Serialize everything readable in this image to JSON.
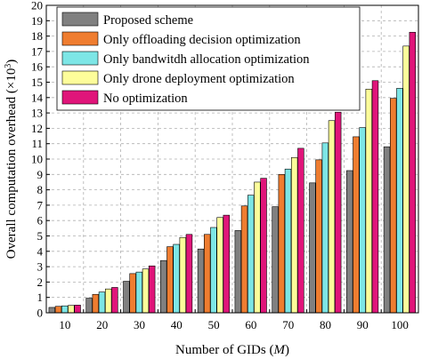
{
  "chart_data": {
    "type": "bar",
    "xlabel": "Number of GIDs (M)",
    "xlabel_prefix": "Number of GIDs (",
    "xlabel_var": "M",
    "xlabel_suffix": ")",
    "ylabel": "Overall computation overhead (×10³)",
    "ylabel_main": "Overall computation overhead (×10",
    "ylabel_sup": "3",
    "ylabel_close": ")",
    "ylim": [
      0,
      20
    ],
    "yticks": [
      0,
      1,
      2,
      3,
      4,
      5,
      6,
      7,
      8,
      9,
      10,
      11,
      12,
      13,
      14,
      15,
      16,
      17,
      18,
      19,
      20
    ],
    "categories": [
      "10",
      "20",
      "30",
      "40",
      "50",
      "60",
      "70",
      "80",
      "90",
      "100"
    ],
    "grid": true,
    "legend_position": "top-left",
    "series": [
      {
        "name": "Proposed scheme",
        "color": "#808080",
        "values": [
          0.35,
          0.95,
          2.05,
          3.4,
          4.15,
          5.35,
          6.9,
          8.45,
          9.25,
          10.8
        ]
      },
      {
        "name": "Only offloading decision optimization",
        "color": "#ef7d30",
        "values": [
          0.42,
          1.2,
          2.55,
          4.3,
          5.1,
          6.95,
          9.0,
          9.95,
          11.45,
          13.95
        ]
      },
      {
        "name": "Only bandwitdh allocation optimization",
        "color": "#7de6e6",
        "values": [
          0.45,
          1.35,
          2.65,
          4.45,
          5.55,
          7.65,
          9.35,
          11.05,
          12.05,
          14.6
        ]
      },
      {
        "name": "Only drone deployment optimization",
        "color": "#fdfd9a",
        "values": [
          0.48,
          1.55,
          2.85,
          4.9,
          6.2,
          8.5,
          10.1,
          12.5,
          14.55,
          17.35
        ]
      },
      {
        "name": "No optimization",
        "color": "#e0157a",
        "values": [
          0.5,
          1.65,
          3.05,
          5.1,
          6.35,
          8.75,
          10.7,
          13.05,
          15.1,
          18.25
        ]
      }
    ]
  }
}
